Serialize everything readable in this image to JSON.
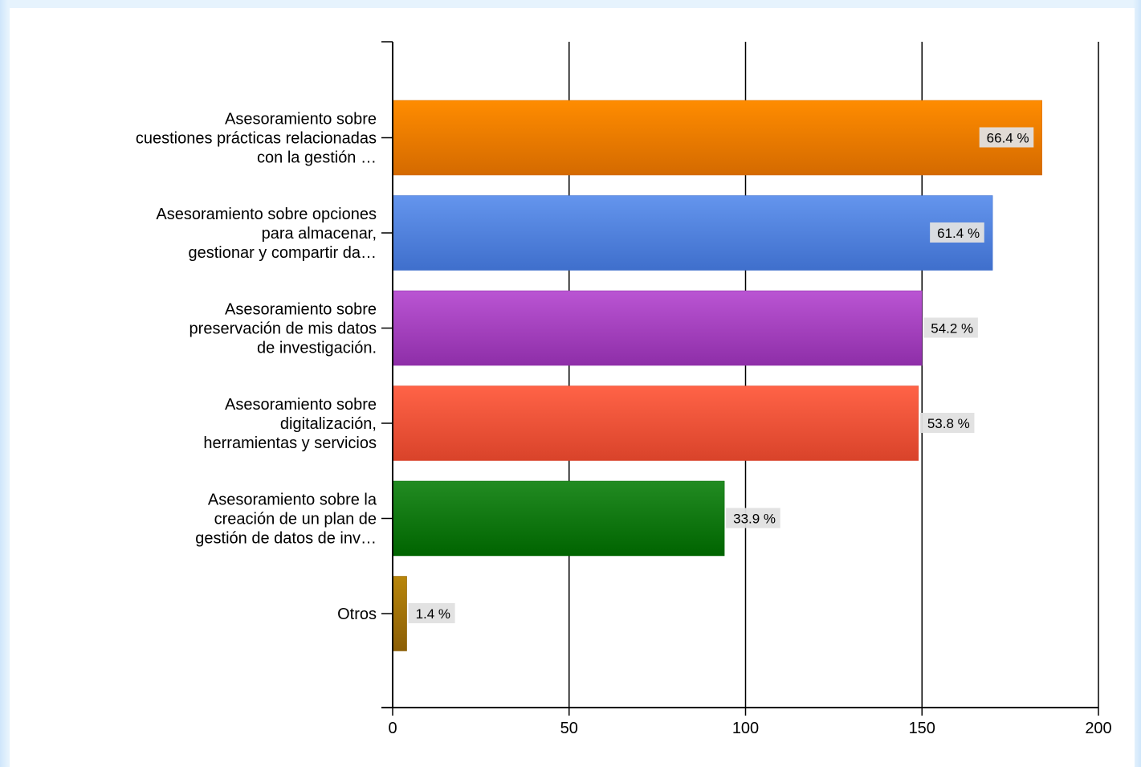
{
  "chart_data": {
    "type": "bar",
    "orientation": "horizontal",
    "title": "",
    "xlabel": "",
    "ylabel": "",
    "xlim": [
      0,
      200
    ],
    "x_ticks": [
      0,
      50,
      100,
      150,
      200
    ],
    "grid": true,
    "categories": [
      [
        "Asesoramiento sobre",
        "cuestiones prácticas relacionadas",
        "con la gestión …"
      ],
      [
        "Asesoramiento sobre opciones",
        "para almacenar,",
        "gestionar y compartir da…"
      ],
      [
        "Asesoramiento sobre",
        "preservación de mis datos",
        "de investigación."
      ],
      [
        "Asesoramiento sobre",
        "digitalización,",
        "herramientas y servicios"
      ],
      [
        "Asesoramiento sobre la",
        "creación de un plan de",
        "gestión de datos de inv…"
      ],
      [
        "Otros"
      ]
    ],
    "values": [
      184,
      170,
      150,
      149,
      94,
      4
    ],
    "value_labels": [
      "66.4 %",
      "61.4 %",
      "54.2 %",
      "53.8 %",
      "33.9 %",
      "1.4 %"
    ],
    "colors": [
      [
        "#ff8c00",
        "#d46a00"
      ],
      [
        "#6495ed",
        "#3f6fcc"
      ],
      [
        "#ba55d3",
        "#8e2ea8"
      ],
      [
        "#ff6347",
        "#d9432a"
      ],
      [
        "#228b22",
        "#006400"
      ],
      [
        "#b8860b",
        "#8b5e06"
      ]
    ]
  }
}
